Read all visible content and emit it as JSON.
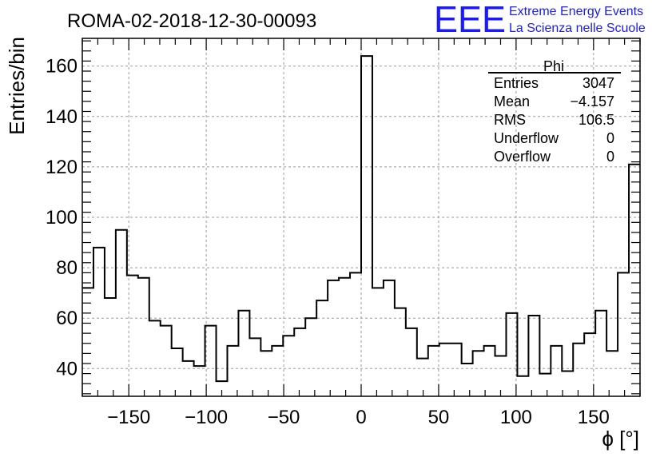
{
  "header": {
    "run_title": "ROMA-02-2018-12-30-00093",
    "logo_text": "EEE",
    "logo_line1": "Extreme Energy Events",
    "logo_line2": "La Scienza nelle Scuole"
  },
  "stats_box": {
    "title": "Phi",
    "rows": [
      {
        "label": "Entries",
        "value": "3047"
      },
      {
        "label": "Mean",
        "value": "−4.157"
      },
      {
        "label": "RMS",
        "value": "106.5"
      },
      {
        "label": "Underflow",
        "value": "0"
      },
      {
        "label": "Overflow",
        "value": "0"
      }
    ]
  },
  "colors": {
    "logo": "#1a1aff",
    "line": "#000000",
    "grid": "#9a9a9a"
  },
  "chart_data": {
    "type": "histogram",
    "title": "ROMA-02-2018-12-30-00093",
    "xlabel": "ϕ [°]",
    "ylabel": "Entries/bin",
    "xlim": [
      -180,
      180
    ],
    "ylim": [
      29,
      171
    ],
    "grid": true,
    "bin_width": 7.2,
    "bin_edges_start": -180,
    "values": [
      72,
      88,
      68,
      95,
      77,
      76,
      59,
      57,
      48,
      43,
      41,
      57,
      35,
      49,
      63,
      52,
      47,
      49,
      53,
      56,
      60,
      67,
      75,
      76,
      78,
      164,
      72,
      75,
      64,
      56,
      44,
      49,
      50,
      50,
      42,
      47,
      49,
      45,
      62,
      37,
      61,
      38,
      49,
      39,
      50,
      54,
      63,
      47,
      78,
      121
    ],
    "x_ticks": [
      -150,
      -100,
      -50,
      0,
      50,
      100,
      150
    ],
    "x_tick_labels": [
      "−150",
      "−100",
      "−50",
      "0",
      "50",
      "100",
      "150"
    ],
    "y_ticks": [
      40,
      60,
      80,
      100,
      120,
      140,
      160
    ],
    "y_tick_labels": [
      "40",
      "60",
      "80",
      "100",
      "120",
      "140",
      "160"
    ]
  }
}
